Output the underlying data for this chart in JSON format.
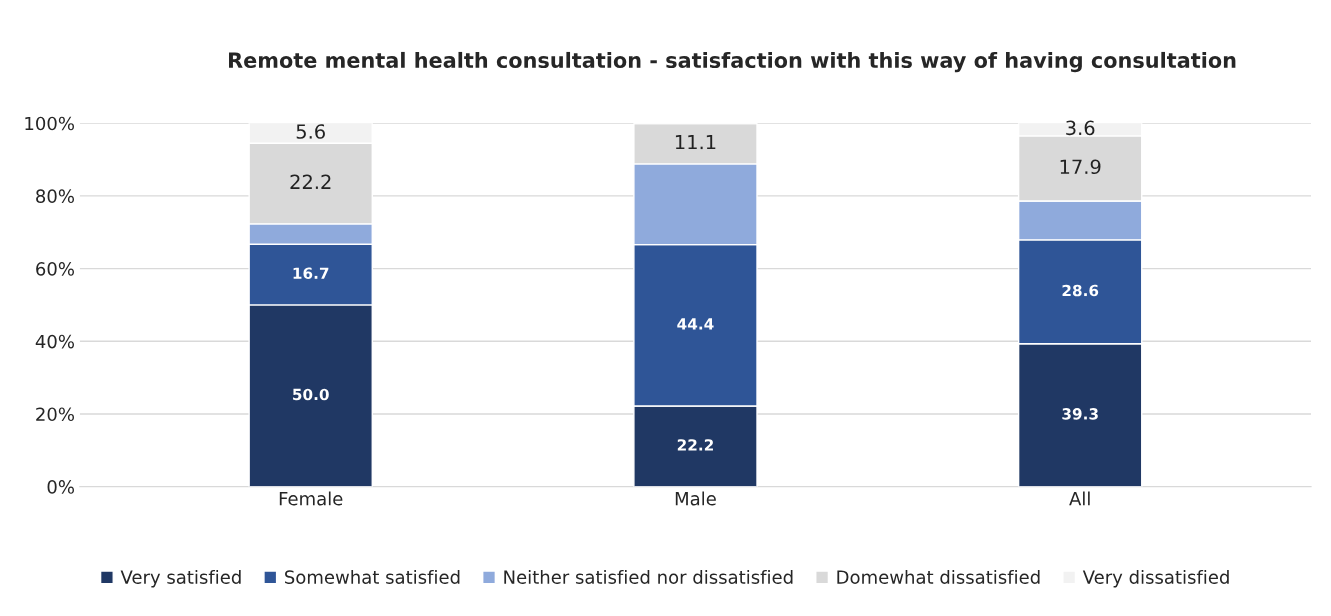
{
  "chart_data": {
    "type": "bar",
    "stacked": true,
    "title": "Remote mental health consultation - satisfaction with this way of having consultation",
    "categories": [
      "Female",
      "Male",
      "All"
    ],
    "series": [
      {
        "name": "Very satisfied",
        "color": "#203864",
        "values": [
          50.0,
          22.2,
          39.3
        ],
        "value_labels": [
          "50.0",
          "22.2",
          "39.3"
        ]
      },
      {
        "name": "Somewhat satisfied",
        "color": "#2f5597",
        "values": [
          16.7,
          44.4,
          28.6
        ],
        "value_labels": [
          "16.7",
          "44.4",
          "28.6"
        ]
      },
      {
        "name": "Neither satisfied nor dissatisfied",
        "color": "#8faadc",
        "values": [
          5.6,
          22.2,
          10.7
        ],
        "value_labels": [
          null,
          null,
          null
        ]
      },
      {
        "name": "Domewhat dissatisfied",
        "color": "#d9d9d9",
        "values": [
          22.2,
          11.1,
          17.9
        ],
        "value_labels": [
          "22.2",
          "11.1",
          "17.9"
        ]
      },
      {
        "name": "Very dissatisfied",
        "color": "#f2f2f2",
        "values": [
          5.6,
          0,
          3.6
        ],
        "value_labels": [
          "5.6",
          null,
          "3.6"
        ]
      }
    ],
    "ylim": [
      0,
      100
    ],
    "yticks": [
      {
        "value": 0,
        "label": "0%"
      },
      {
        "value": 20,
        "label": "20%"
      },
      {
        "value": 40,
        "label": "40%"
      },
      {
        "value": 60,
        "label": "60%"
      },
      {
        "value": 80,
        "label": "80%"
      },
      {
        "value": 100,
        "label": "100%"
      }
    ],
    "grid": "y",
    "legend": "bottom"
  }
}
